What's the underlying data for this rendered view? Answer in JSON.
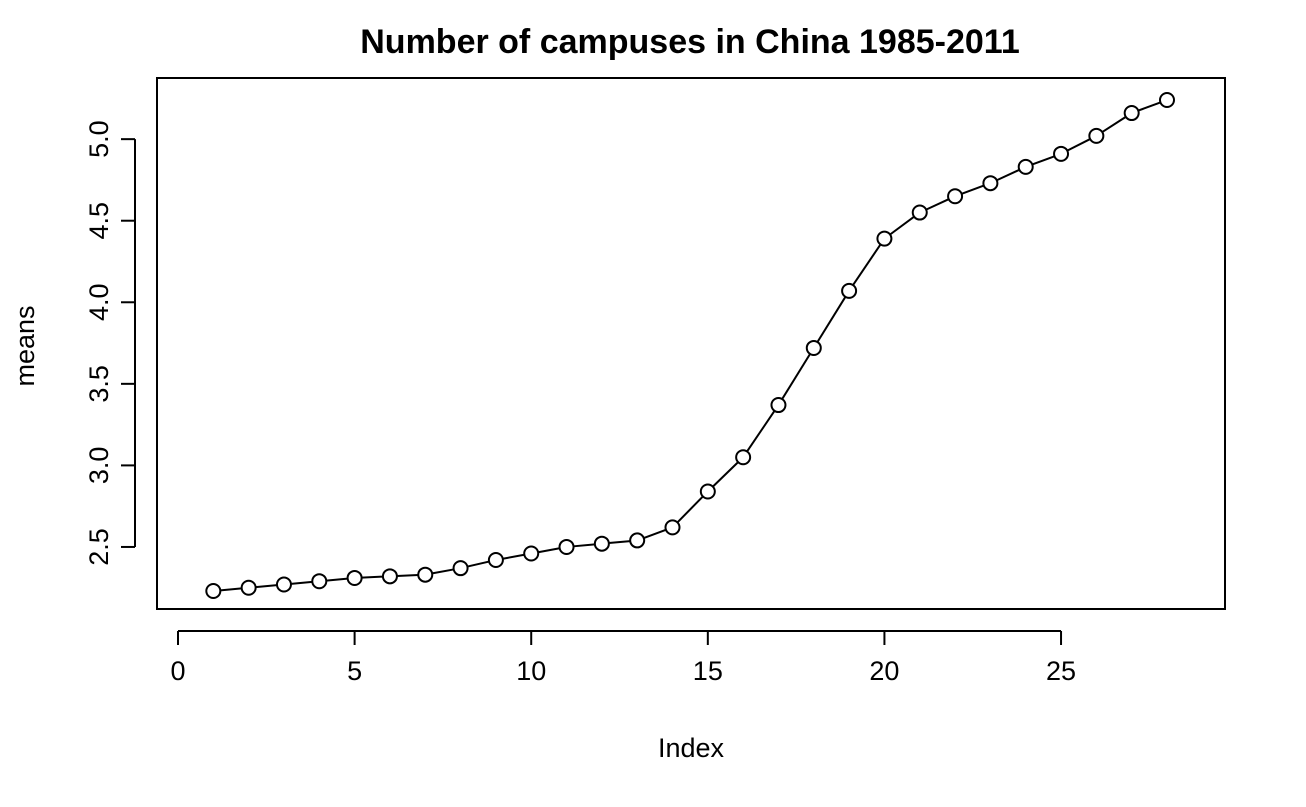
{
  "chart_data": {
    "type": "line",
    "title": "Number of campuses in China 1985-2011",
    "xlabel": "Index",
    "ylabel": "means",
    "xlim": [
      0,
      29
    ],
    "ylim": [
      2.1,
      5.4
    ],
    "xticks": [
      0,
      5,
      10,
      15,
      20,
      25
    ],
    "yticks": [
      2.5,
      3.0,
      3.5,
      4.0,
      4.5,
      5.0
    ],
    "xtick_labels": [
      "0",
      "5",
      "10",
      "15",
      "20",
      "25"
    ],
    "ytick_labels": [
      "2.5",
      "3.0",
      "3.5",
      "4.0",
      "4.5",
      "5.0"
    ],
    "grid": false,
    "line_color": "#000000",
    "marker": "open-circle",
    "series": [
      {
        "x": [
          1,
          2,
          3,
          4,
          5,
          6,
          7,
          8,
          9,
          10,
          11,
          12,
          13,
          14,
          15,
          16,
          17,
          18,
          19,
          20,
          21,
          22,
          23,
          24,
          25,
          26,
          27,
          28
        ],
        "values": [
          2.23,
          2.25,
          2.27,
          2.29,
          2.31,
          2.32,
          2.33,
          2.37,
          2.42,
          2.46,
          2.5,
          2.52,
          2.54,
          2.62,
          2.84,
          3.05,
          3.37,
          3.72,
          4.07,
          4.39,
          4.55,
          4.65,
          4.73,
          4.83,
          4.91,
          5.02,
          5.16,
          5.24
        ]
      }
    ]
  }
}
